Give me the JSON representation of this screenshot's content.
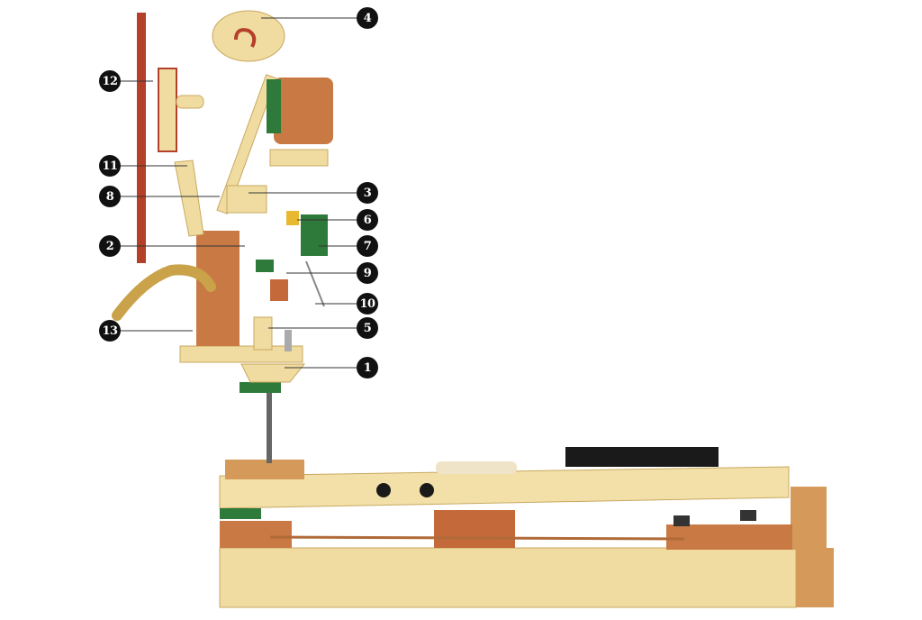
{
  "diagram": {
    "callouts": [
      {
        "id": "c1",
        "label": "1"
      },
      {
        "id": "c2",
        "label": "2"
      },
      {
        "id": "c3",
        "label": "3"
      },
      {
        "id": "c4",
        "label": "4"
      },
      {
        "id": "c5",
        "label": "5"
      },
      {
        "id": "c6",
        "label": "6"
      },
      {
        "id": "c7",
        "label": "7"
      },
      {
        "id": "c8",
        "label": "8"
      },
      {
        "id": "c9",
        "label": "9"
      },
      {
        "id": "c10",
        "label": "10"
      },
      {
        "id": "c11",
        "label": "11"
      },
      {
        "id": "c12",
        "label": "12"
      },
      {
        "id": "c13",
        "label": "13"
      }
    ],
    "colors": {
      "wood_light": "#f0dca0",
      "wood_mid": "#e3c27a",
      "wood_dark": "#c98a4a",
      "felt_red": "#b5402a",
      "felt_green": "#2e7a3a",
      "brass": "#c9a24a",
      "key_black": "#1a1a1a",
      "callout_bg": "#111111",
      "leader_line": "#333333"
    }
  }
}
